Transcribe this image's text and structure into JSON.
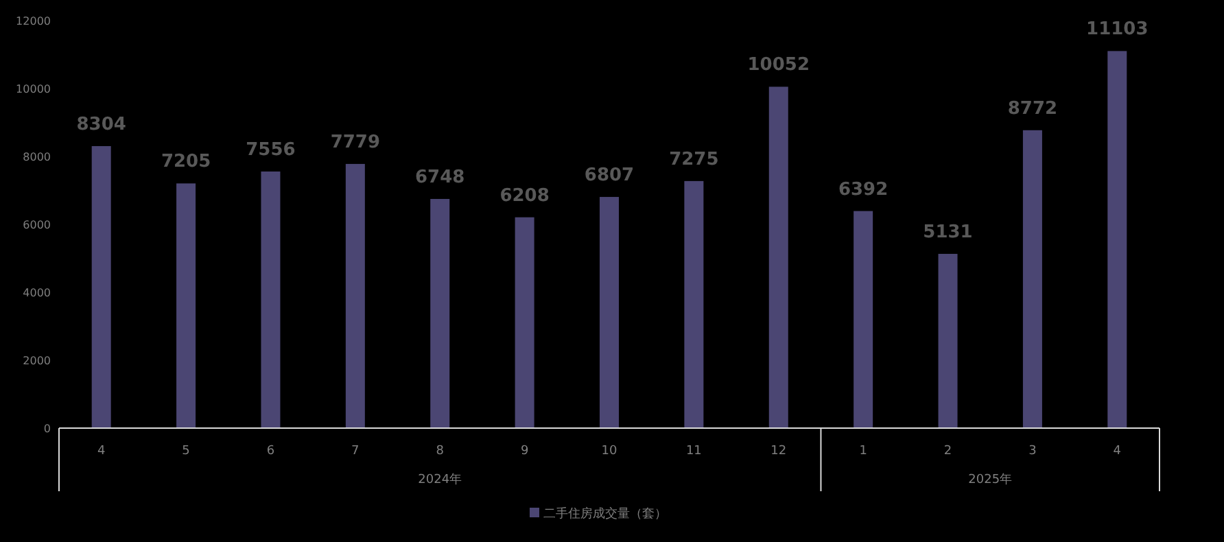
{
  "chart_data": {
    "type": "bar",
    "categories": [
      "4",
      "5",
      "6",
      "7",
      "8",
      "9",
      "10",
      "11",
      "12",
      "1",
      "2",
      "3",
      "4"
    ],
    "series": [
      {
        "name": "二手住房成交量（套）",
        "color": "#4b4673",
        "values": [
          8304,
          7205,
          7556,
          7779,
          6748,
          6208,
          6807,
          7275,
          10052,
          6392,
          5131,
          8772,
          11103
        ]
      }
    ],
    "ylim": [
      0,
      12000
    ],
    "yticks": [
      0,
      2000,
      4000,
      6000,
      8000,
      10000,
      12000
    ],
    "data_labels": true,
    "legend": "bottom",
    "grid": false,
    "annotations": [
      "2024年",
      "2025年"
    ]
  }
}
